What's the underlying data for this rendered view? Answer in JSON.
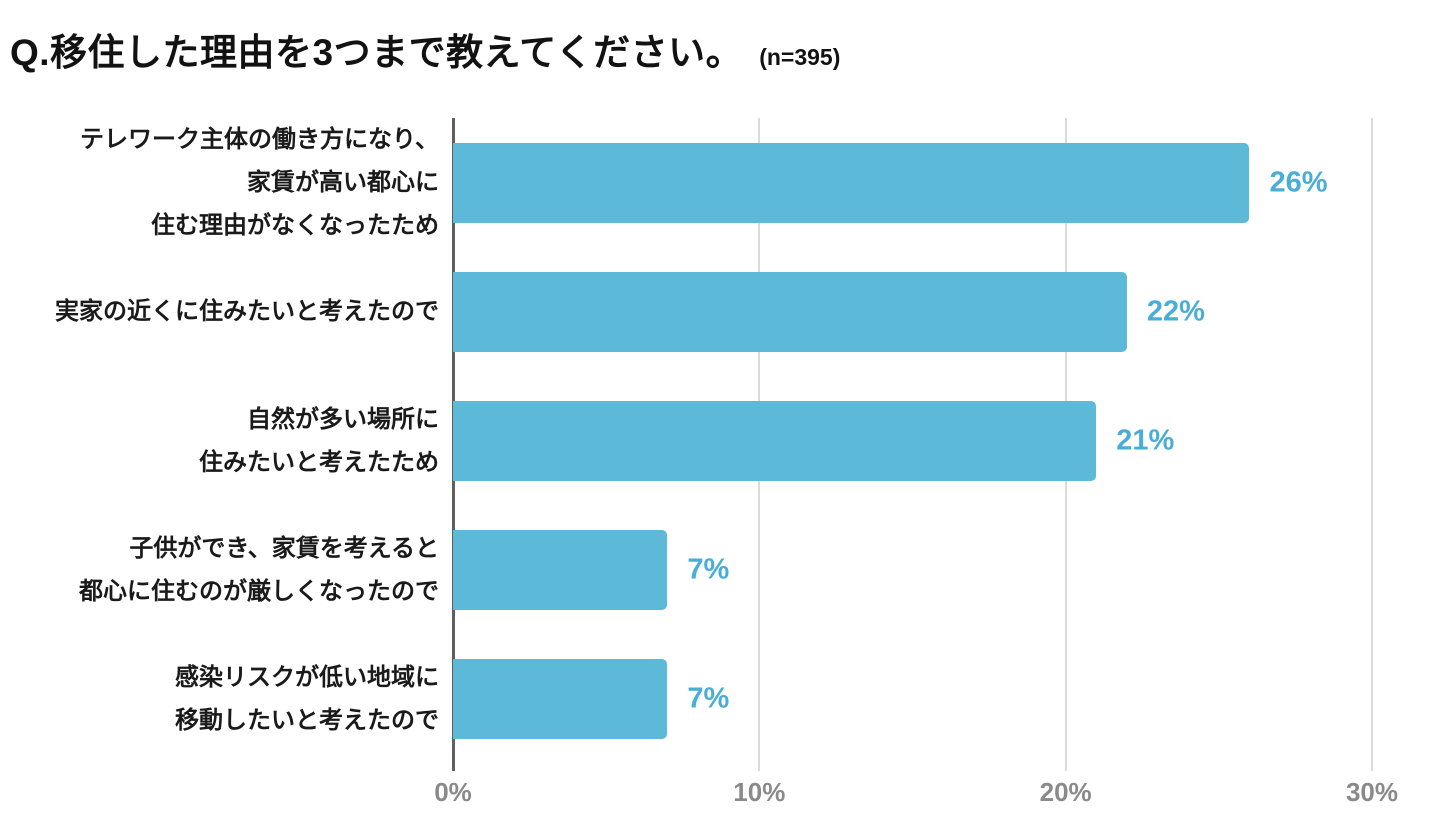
{
  "header": {
    "title": "Q.移住した理由を3つまで教えてください。",
    "sample_size": "(n=395)"
  },
  "chart_data": {
    "type": "bar",
    "orientation": "horizontal",
    "title": "Q.移住した理由を3つまで教えてください。",
    "sample_note": "(n=395)",
    "categories": [
      "テレワーク主体の働き方になり、家賃が高い都心に住む理由がなくなったため",
      "実家の近くに住みたいと考えたので",
      "自然が多い場所に住みたいと考えたため",
      "子供ができ、家賃を考えると都心に住むのが厳しくなったので",
      "感染リスクが低い地域に移動したいと考えたので"
    ],
    "category_lines": [
      [
        "テレワーク主体の働き方になり、",
        "家賃が高い都心に",
        "住む理由がなくなったため"
      ],
      [
        "実家の近くに住みたいと考えたので"
      ],
      [
        "自然が多い場所に",
        "住みたいと考えたため"
      ],
      [
        "子供ができ、家賃を考えると",
        "都心に住むのが厳しくなったので"
      ],
      [
        "感染リスクが低い地域に",
        "移動したいと考えたので"
      ]
    ],
    "values": [
      26,
      22,
      21,
      7,
      7
    ],
    "value_labels": [
      "26%",
      "22%",
      "21%",
      "7%",
      "7%"
    ],
    "xlim": [
      0,
      30
    ],
    "x_ticks": [
      {
        "value": 0,
        "label": "0%"
      },
      {
        "value": 10,
        "label": "10%"
      },
      {
        "value": 20,
        "label": "20%"
      },
      {
        "value": 30,
        "label": "30%"
      }
    ],
    "grid": true,
    "legend": false,
    "colors": {
      "bar": "#5CB9D8",
      "value_label": "#49AED7",
      "grid_line": "#DBDBDB",
      "axis_line": "#5F5F5F",
      "tick_label": "#8A8A8A",
      "title": "#121212"
    }
  }
}
